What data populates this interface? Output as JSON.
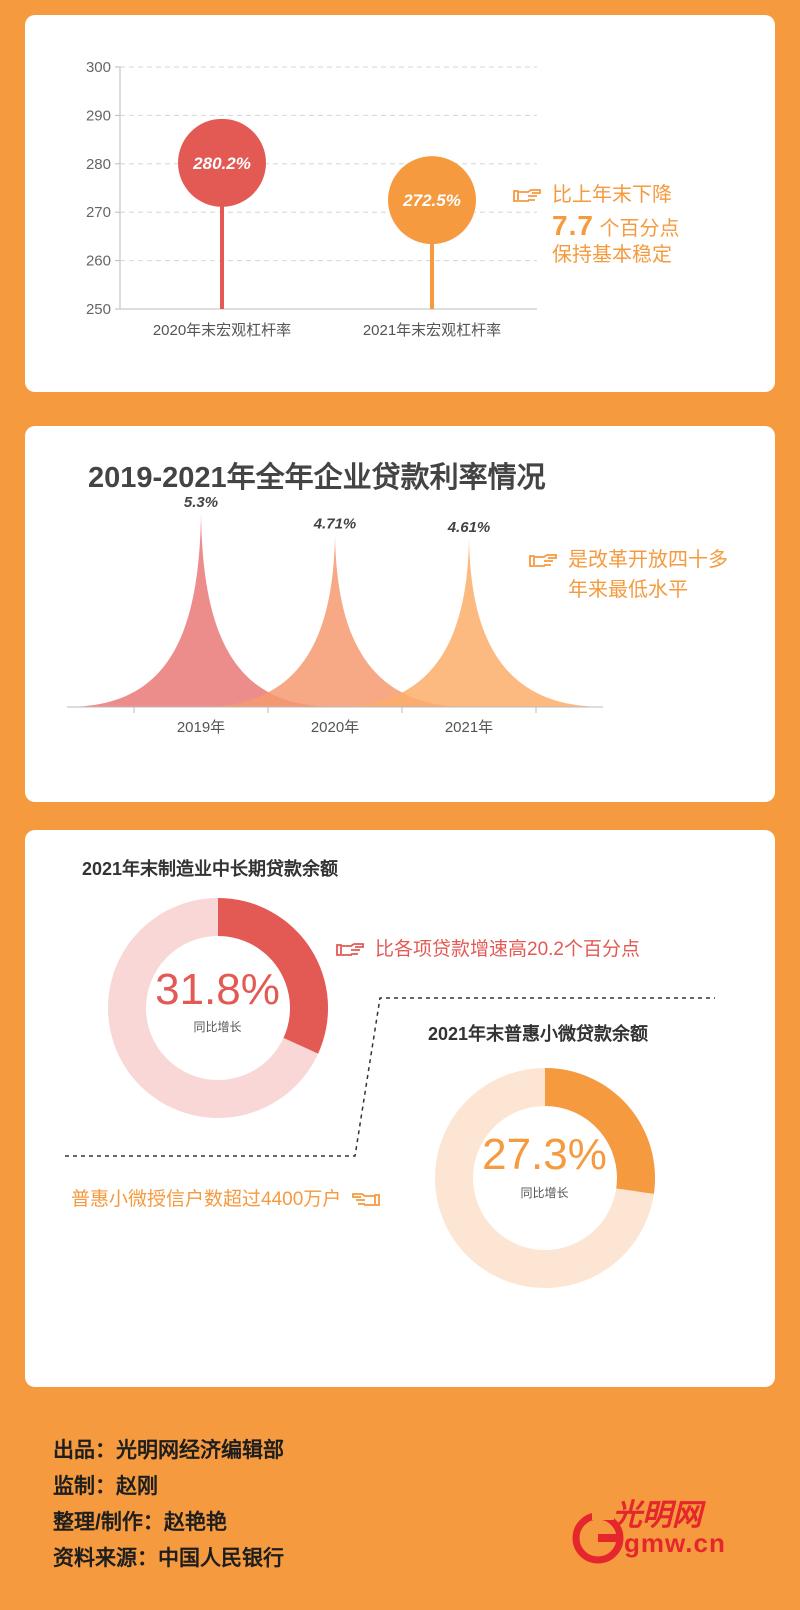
{
  "chart_data": [
    {
      "type": "lollipop",
      "categories": [
        "2020年末宏观杠杆率",
        "2021年末宏观杠杆率"
      ],
      "values": [
        280.2,
        272.5
      ],
      "value_labels": [
        "280.2%",
        "272.5%"
      ],
      "ylim": [
        250,
        300
      ],
      "yticks": [
        250,
        260,
        270,
        280,
        290,
        300
      ],
      "grid": true,
      "colors": [
        "#E35A55",
        "#F59A3E"
      ],
      "annotation": {
        "line1": "比上年末下降",
        "number": "7.7",
        "line2_rest": "个百分点",
        "line3": "保持基本稳定"
      }
    },
    {
      "type": "area",
      "title": "2019-2021年全年企业贷款利率情况",
      "categories": [
        "2019年",
        "2020年",
        "2021年"
      ],
      "values": [
        5.3,
        4.71,
        4.61
      ],
      "value_labels": [
        "5.3%",
        "4.71%",
        "4.61%"
      ],
      "colors": [
        "#E97877",
        "#F59A6F",
        "#FBAE6B"
      ],
      "annotation": {
        "line1": "是改革开放四十多",
        "line2": "年来最低水平"
      }
    },
    {
      "type": "pie",
      "title": "2021年末制造业中长期贷款余额",
      "value": 31.8,
      "value_label": "31.8%",
      "sublabel": "同比增长",
      "colors": [
        "#E35A55",
        "#F8D7D6"
      ],
      "annotation": "比各项贷款增速高20.2个百分点"
    },
    {
      "type": "pie",
      "title": "2021年末普惠小微贷款余额",
      "value": 27.3,
      "value_label": "27.3%",
      "sublabel": "同比增长",
      "colors": [
        "#F59A3E",
        "#FCE5D3"
      ],
      "annotation": "普惠小微授信户数超过4400万户"
    }
  ],
  "credits": [
    "出品：光明网经济编辑部",
    "监制：赵刚",
    "整理/制作：赵艳艳",
    "资料来源：中国人民银行"
  ],
  "logo": {
    "text": "光明网",
    "domain": "gmw.cn",
    "icon": "gmw-logo-icon",
    "color": "#E5262D"
  }
}
